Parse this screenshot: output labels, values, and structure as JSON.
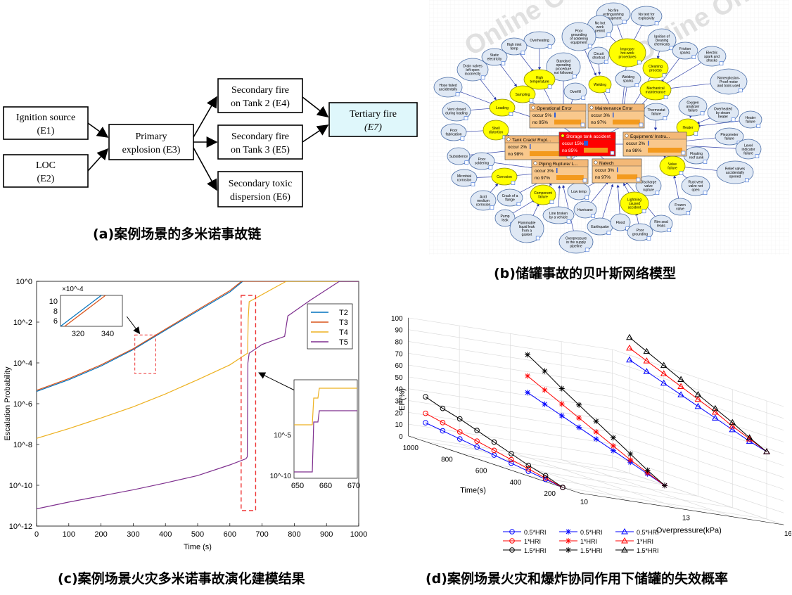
{
  "captions": {
    "a": "(a)案例场景的多米诺事故链",
    "b": "(b)储罐事故的贝叶斯网络模型",
    "c": "(c)案例场景火灾多米诺事故演化建模结果",
    "d": "(d)案例场景火灾和爆炸协同作用下储罐的失效概率"
  },
  "chain": {
    "nodes": [
      {
        "id": "e1",
        "line1": "Ignition source",
        "line2": "(E1)"
      },
      {
        "id": "e2",
        "line1": "LOC",
        "line2": "(E2)"
      },
      {
        "id": "e3",
        "line1": "Primary",
        "line2": "explosion (E3)"
      },
      {
        "id": "e4",
        "line1": "Secondary fire",
        "line2": "on Tank 2 (E4)"
      },
      {
        "id": "e5",
        "line1": "Secondary fire",
        "line2": "on Tank 3 (E5)"
      },
      {
        "id": "e6",
        "line1": "Secondary toxic",
        "line2": "dispersion (E6)"
      },
      {
        "id": "e7",
        "line1": "Tertiary fire",
        "line2": "(E7)"
      }
    ]
  },
  "bn": {
    "watermark": "Online Only",
    "cpt_nodes": [
      {
        "id": "op",
        "title": "Operational Error",
        "occur": "occur  5%",
        "no": "no   95%"
      },
      {
        "id": "me",
        "title": "Maintenance Error",
        "occur": "occur  3%",
        "no": "no   97%"
      },
      {
        "id": "tc",
        "title": "Tank Crack/ Rupt...",
        "occur": "occur  2%",
        "no": "no   98%"
      },
      {
        "id": "sa",
        "title": "Storage tank accident",
        "occur": "occur 15%",
        "no": "no   85%"
      },
      {
        "id": "eq",
        "title": "Equipment/ Instru...",
        "occur": "occur  2%",
        "no": "no   98%"
      },
      {
        "id": "pr",
        "title": "Piping Rupture/ L...",
        "occur": "occur  3%",
        "no": "no   97%"
      },
      {
        "id": "na",
        "title": "Natech",
        "occur": "occur  3%",
        "no": "no   97%"
      }
    ],
    "yellow_nodes": [
      {
        "id": "y1",
        "label": [
          "Improper",
          "hot-work",
          "procedures"
        ]
      },
      {
        "id": "y2",
        "label": [
          "High",
          "temperature"
        ]
      },
      {
        "id": "y3",
        "label": [
          "Sampling"
        ]
      },
      {
        "id": "y4",
        "label": [
          "Loading"
        ]
      },
      {
        "id": "y5",
        "label": [
          "Welding"
        ]
      },
      {
        "id": "y6",
        "label": [
          "Cleaning",
          "process"
        ]
      },
      {
        "id": "y7",
        "label": [
          "Mechanical",
          "maintenance"
        ]
      },
      {
        "id": "y8",
        "label": [
          "Shell",
          "distortion"
        ]
      },
      {
        "id": "y9",
        "label": [
          "Heater"
        ]
      },
      {
        "id": "y10",
        "label": [
          "Corrosion"
        ]
      },
      {
        "id": "y11",
        "label": [
          "Valve",
          "failure"
        ]
      },
      {
        "id": "y12",
        "label": [
          "Component",
          "failure"
        ]
      },
      {
        "id": "y13",
        "label": [
          "Lightning",
          "caused",
          "accident"
        ]
      }
    ],
    "blue_nodes": [
      {
        "id": "b1",
        "label": [
          "No fire",
          "extinguishing",
          "equipment"
        ]
      },
      {
        "id": "b2",
        "label": [
          "No test for",
          "explosivity"
        ]
      },
      {
        "id": "b3",
        "label": [
          "No hot",
          "work",
          "permit"
        ]
      },
      {
        "id": "b4",
        "label": [
          "Poor",
          "grounding",
          "of soldering",
          "equipment"
        ]
      },
      {
        "id": "b5",
        "label": [
          "Overheating"
        ]
      },
      {
        "id": "b6",
        "label": [
          "High inlet",
          "temp"
        ]
      },
      {
        "id": "b7",
        "label": [
          "Static",
          "electricity"
        ]
      },
      {
        "id": "b8",
        "label": [
          "Drain valves",
          "left open",
          "incorrectly"
        ]
      },
      {
        "id": "b9",
        "label": [
          "Hose failed",
          "accidentally"
        ]
      },
      {
        "id": "b10",
        "label": [
          "Vent closed",
          "during loading"
        ]
      },
      {
        "id": "b11",
        "label": [
          "Standard",
          "operating",
          "procedure",
          "not followed"
        ]
      },
      {
        "id": "b12",
        "label": [
          "Circuit",
          "shortcut"
        ]
      },
      {
        "id": "b13",
        "label": [
          "Overfill"
        ]
      },
      {
        "id": "b14",
        "label": [
          "Ignition of",
          "cleaning",
          "chemicals"
        ]
      },
      {
        "id": "b15",
        "label": [
          "Friction",
          "sparks"
        ]
      },
      {
        "id": "b16",
        "label": [
          "Electric",
          "spark and",
          "shocks"
        ]
      },
      {
        "id": "b17",
        "label": [
          "Welding",
          "sparks"
        ]
      },
      {
        "id": "b18",
        "label": [
          "Nonexplosion-",
          "Proof motor",
          "and tools used"
        ]
      },
      {
        "id": "b19",
        "label": [
          "Thermostat",
          "failure"
        ]
      },
      {
        "id": "b20",
        "label": [
          "Oxygen",
          "analyzer",
          "failure"
        ]
      },
      {
        "id": "b21",
        "label": [
          "Overheated",
          "by steam",
          "heater"
        ]
      },
      {
        "id": "b22",
        "label": [
          "Heater",
          "failure"
        ]
      },
      {
        "id": "b23",
        "label": [
          "Poor",
          "fabrication"
        ]
      },
      {
        "id": "b24",
        "label": [
          "Subsidence"
        ]
      },
      {
        "id": "b25",
        "label": [
          "Piezometer",
          "failure"
        ]
      },
      {
        "id": "b26",
        "label": [
          "Floating",
          "roof sunk"
        ]
      },
      {
        "id": "b27",
        "label": [
          "Level",
          "indicator",
          "failure"
        ]
      },
      {
        "id": "b28",
        "label": [
          "Poor",
          "soldering"
        ]
      },
      {
        "id": "b29",
        "label": [
          "Microbial",
          "corrosion"
        ]
      },
      {
        "id": "b30",
        "label": [
          "Relief valves",
          "accidentally",
          "opened"
        ]
      },
      {
        "id": "b31",
        "label": [
          "Discharge",
          "valve",
          "rupture"
        ]
      },
      {
        "id": "b32",
        "label": [
          "Rust vent",
          "valve not",
          "open"
        ]
      },
      {
        "id": "b33",
        "label": [
          "Acid",
          "medium",
          "corrosion"
        ]
      },
      {
        "id": "b34",
        "label": [
          "Crack of a",
          "flange"
        ]
      },
      {
        "id": "b35",
        "label": [
          "Low temp"
        ]
      },
      {
        "id": "b36",
        "label": [
          "Frozen",
          "valve"
        ]
      },
      {
        "id": "b37",
        "label": [
          "Pump",
          "leak"
        ]
      },
      {
        "id": "b38",
        "label": [
          "Line broken",
          "by a vehicle"
        ]
      },
      {
        "id": "b39",
        "label": [
          "Hurricane"
        ]
      },
      {
        "id": "b40",
        "label": [
          "Rim seal",
          "leaks"
        ]
      },
      {
        "id": "b41",
        "label": [
          "Flammable",
          "liquid leak",
          "from a",
          "gasket"
        ]
      },
      {
        "id": "b42",
        "label": [
          "Earthquake"
        ]
      },
      {
        "id": "b43",
        "label": [
          "Flood"
        ]
      },
      {
        "id": "b44",
        "label": [
          "Poor",
          "grounding"
        ]
      },
      {
        "id": "b45",
        "label": [
          "Overpressure",
          "in the supply",
          "pipeline"
        ]
      }
    ]
  },
  "chart_data": [
    {
      "type": "line",
      "ylabel": "Escalation Probability",
      "xlabel": "Time (s)",
      "xlim": [
        0,
        1000
      ],
      "ylim": [
        1e-12,
        1
      ],
      "yscale": "log",
      "xticks": [
        "0",
        "100",
        "200",
        "300",
        "400",
        "500",
        "600",
        "700",
        "800",
        "900",
        "1000"
      ],
      "yticks": [
        "10^-12",
        "10^-10",
        "10^-8",
        "10^-6",
        "10^-4",
        "10^-2",
        "10^0"
      ],
      "legend_position": "top-right",
      "series": [
        {
          "name": "T2",
          "color": "#0072BD",
          "points": [
            [
              0,
              4e-06
            ],
            [
              100,
              1.5e-05
            ],
            [
              200,
              7e-05
            ],
            [
              300,
              0.00045
            ],
            [
              400,
              0.004
            ],
            [
              500,
              0.035
            ],
            [
              600,
              0.3
            ],
            [
              640,
              1
            ],
            [
              1000,
              1
            ]
          ]
        },
        {
          "name": "T3",
          "color": "#D95319",
          "points": [
            [
              0,
              4.5e-06
            ],
            [
              100,
              1.7e-05
            ],
            [
              200,
              8e-05
            ],
            [
              300,
              0.0005
            ],
            [
              400,
              0.0045
            ],
            [
              500,
              0.04
            ],
            [
              600,
              0.35
            ],
            [
              636,
              1
            ],
            [
              1000,
              1
            ]
          ]
        },
        {
          "name": "T4",
          "color": "#EDB120",
          "points": [
            [
              0,
              2e-08
            ],
            [
              100,
              6e-08
            ],
            [
              200,
              2e-07
            ],
            [
              300,
              7e-07
            ],
            [
              400,
              3e-06
            ],
            [
              500,
              1.5e-05
            ],
            [
              600,
              8e-05
            ],
            [
              655,
              0.0003
            ],
            [
              657,
              0.015
            ],
            [
              660,
              0.1
            ],
            [
              740,
              0.5
            ],
            [
              775,
              1
            ],
            [
              1000,
              1
            ]
          ]
        },
        {
          "name": "T5",
          "color": "#7E2F8E",
          "points": [
            [
              0,
              7e-12
            ],
            [
              100,
              1.5e-11
            ],
            [
              200,
              3e-11
            ],
            [
              300,
              6e-11
            ],
            [
              400,
              1.3e-10
            ],
            [
              500,
              3e-10
            ],
            [
              600,
              1e-09
            ],
            [
              650,
              2e-09
            ],
            [
              654,
              2.5e-09
            ],
            [
              656,
              0.0001
            ],
            [
              660,
              0.0003
            ],
            [
              700,
              0.0008
            ],
            [
              770,
              0.002
            ],
            [
              780,
              0.02
            ],
            [
              850,
              0.12
            ],
            [
              940,
              1
            ],
            [
              1000,
              1
            ]
          ]
        }
      ],
      "insets": [
        {
          "xticks": [
            "320",
            "340"
          ],
          "yticks": [
            "6",
            "8",
            "10"
          ],
          "yexp": "×10^-4"
        },
        {
          "xticks": [
            "650",
            "660",
            "670"
          ],
          "yticks": [
            "10^-5",
            "10^-10"
          ]
        }
      ]
    },
    {
      "type": "scatter3d",
      "zlabel": "EP(%)",
      "xlabel": "Overpressure(kPa)",
      "ylabel": "Time(s)",
      "zticks": [
        "0",
        "10",
        "20",
        "30",
        "40",
        "50",
        "60",
        "70",
        "80",
        "90",
        "100"
      ],
      "xticks": [
        "10",
        "13",
        "16"
      ],
      "yticks": [
        "200",
        "400",
        "600",
        "800",
        "1000"
      ],
      "legend": [
        {
          "name": "0.5*HRI",
          "marker": "o",
          "color": "#0000FF"
        },
        {
          "name": "0.5*HRI",
          "marker": "*",
          "color": "#0000FF"
        },
        {
          "name": "0.5*HRI",
          "marker": "^",
          "color": "#0000FF"
        },
        {
          "name": "1*HRI",
          "marker": "o",
          "color": "#FF0000"
        },
        {
          "name": "1*HRI",
          "marker": "*",
          "color": "#FF0000"
        },
        {
          "name": "1*HRI",
          "marker": "^",
          "color": "#FF0000"
        },
        {
          "name": "1.5*HRI",
          "marker": "o",
          "color": "#000000"
        },
        {
          "name": "1.5*HRI",
          "marker": "*",
          "color": "#000000"
        },
        {
          "name": "1.5*HRI",
          "marker": "^",
          "color": "#000000"
        }
      ],
      "series": [
        {
          "overpressure": 10,
          "marker": "o",
          "hri": 0.5,
          "color": "#0000FF",
          "time": [
            1000,
            900,
            800,
            700,
            600,
            500,
            400,
            300,
            200
          ],
          "ep": [
            16,
            14,
            12,
            10,
            8,
            6,
            4,
            2,
            0
          ]
        },
        {
          "overpressure": 10,
          "marker": "o",
          "hri": 1,
          "color": "#FF0000",
          "time": [
            1000,
            900,
            800,
            700,
            600,
            500,
            400,
            300,
            200
          ],
          "ep": [
            24,
            21,
            18,
            15,
            12,
            9,
            6,
            3,
            0
          ]
        },
        {
          "overpressure": 10,
          "marker": "o",
          "hri": 1.5,
          "color": "#000000",
          "time": [
            1000,
            900,
            800,
            700,
            600,
            500,
            400,
            300,
            200
          ],
          "ep": [
            38,
            33,
            29,
            24,
            19,
            14,
            9,
            5,
            0
          ]
        },
        {
          "overpressure": 13,
          "marker": "*",
          "hri": 0.5,
          "color": "#0000FF",
          "time": [
            1000,
            900,
            800,
            700,
            600,
            500,
            400,
            300,
            200
          ],
          "ep": [
            55,
            50,
            45,
            40,
            35,
            30,
            25,
            20,
            15
          ]
        },
        {
          "overpressure": 13,
          "marker": "*",
          "hri": 1,
          "color": "#FF0000",
          "time": [
            1000,
            900,
            800,
            700,
            600,
            500,
            400,
            300,
            200
          ],
          "ep": [
            69,
            62,
            55,
            48,
            41,
            34,
            27,
            21,
            15
          ]
        },
        {
          "overpressure": 13,
          "marker": "*",
          "hri": 1.5,
          "color": "#000000",
          "time": [
            1000,
            900,
            800,
            700,
            600,
            500,
            400,
            300,
            200
          ],
          "ep": [
            87,
            78,
            68,
            59,
            50,
            41,
            32,
            23,
            15
          ]
        },
        {
          "overpressure": 16,
          "marker": "^",
          "hri": 0.5,
          "color": "#0000FF",
          "time": [
            1000,
            900,
            800,
            700,
            600,
            500,
            400,
            300,
            200
          ],
          "ep": [
            96,
            91,
            86,
            81,
            76,
            71,
            66,
            61,
            57
          ]
        },
        {
          "overpressure": 16,
          "marker": "^",
          "hri": 1,
          "color": "#FF0000",
          "time": [
            1000,
            900,
            800,
            700,
            600,
            500,
            400,
            300,
            200
          ],
          "ep": [
            106,
            100,
            94,
            88,
            82,
            76,
            69,
            63,
            57
          ]
        },
        {
          "overpressure": 16,
          "marker": "^",
          "hri": 1.5,
          "color": "#000000",
          "time": [
            1000,
            900,
            800,
            700,
            600,
            500,
            400,
            300,
            200
          ],
          "ep": [
            115,
            108,
            101,
            94,
            86,
            79,
            72,
            64,
            57
          ]
        }
      ]
    }
  ]
}
